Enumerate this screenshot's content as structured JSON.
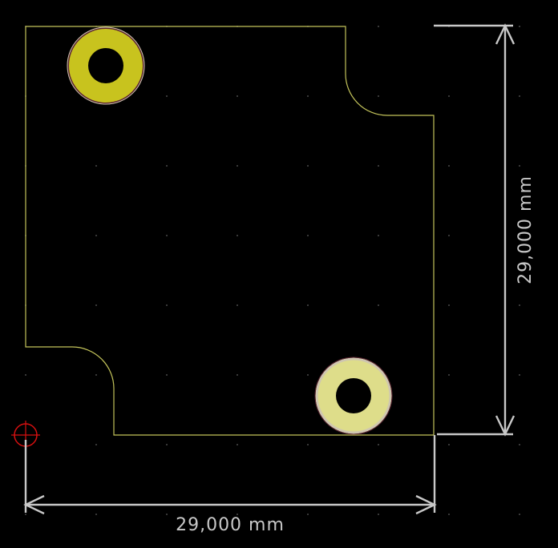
{
  "colors": {
    "background": "#000000",
    "board_outline": "#c2c25a",
    "dimension": "#c8c8c8",
    "pad_top_fill": "#c8c31e",
    "pad_bottom_fill": "#dedd8a",
    "pad_ring": "#cfc6b0",
    "pad_edge": "#5a2430",
    "origin_marker": "#d81010",
    "grid_dot": "#4a4a4a"
  },
  "dimensions": {
    "horizontal": {
      "label": "29,000 mm"
    },
    "vertical": {
      "label": "29,000 mm"
    }
  },
  "pads": [
    {
      "name": "mounting-hole-top-left",
      "layer": "front"
    },
    {
      "name": "mounting-hole-bottom-right",
      "layer": "back"
    }
  ],
  "origin": {
    "icon": "crosshair-target-icon"
  }
}
